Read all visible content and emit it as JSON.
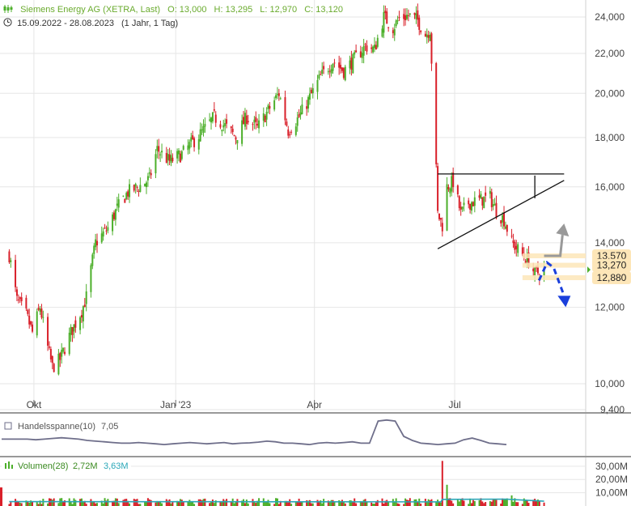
{
  "header": {
    "name": "Siemens Energy AG (XETRA, Last)",
    "open": "O: 13,000",
    "high": "H: 13,295",
    "low": "L: 12,970",
    "close": "C: 13,120",
    "range": "15.09.2022 - 28.08.2023",
    "interval": "(1 Jahr, 1 Tag)",
    "chart_icon": "candlestick-icon",
    "clock_icon": "clock-icon"
  },
  "colors": {
    "up": "#4caf2a",
    "down": "#d9202a",
    "grid": "#e6e6e6",
    "trend": "#111111",
    "label_bg": "#fde6b8",
    "arrow_up": "#999999",
    "arrow_down": "#1a3fdc",
    "volume_avg": "#2aa7b8",
    "indicator": "#6e6e8a"
  },
  "chart_data": [
    {
      "type": "candlestick",
      "title": "Siemens Energy AG (XETRA, Last)",
      "y_axis": {
        "scale": "log",
        "ticks": [
          "24,000",
          "22,000",
          "20,000",
          "18,000",
          "16,000",
          "14,000",
          "12,000",
          "10,000",
          "9,400"
        ],
        "tick_values": [
          24,
          22,
          20,
          18,
          16,
          14,
          12,
          10,
          9.4
        ],
        "ylim": [
          9.4,
          24.8
        ]
      },
      "x_axis": {
        "ticks": [
          "Okt",
          "Jan '23",
          "Apr",
          "Jul"
        ],
        "range": [
          "15.09.2022",
          "28.08.2023"
        ]
      },
      "close_path": [
        [
          "2022-09-15",
          13.6
        ],
        [
          "2022-09-20",
          12.2
        ],
        [
          "2022-09-26",
          11.8
        ],
        [
          "2022-09-30",
          11.3
        ],
        [
          "2022-10-05",
          12.0
        ],
        [
          "2022-10-10",
          10.9
        ],
        [
          "2022-10-13",
          10.4
        ],
        [
          "2022-10-18",
          10.6
        ],
        [
          "2022-10-25",
          11.3
        ],
        [
          "2022-11-01",
          11.9
        ],
        [
          "2022-11-04",
          12.3
        ],
        [
          "2022-11-10",
          14.0
        ],
        [
          "2022-11-18",
          14.5
        ],
        [
          "2022-11-24",
          15.2
        ],
        [
          "2022-12-01",
          15.8
        ],
        [
          "2022-12-08",
          16.0
        ],
        [
          "2022-12-15",
          16.3
        ],
        [
          "2022-12-20",
          17.5
        ],
        [
          "2022-12-28",
          17.0
        ],
        [
          "2023-01-05",
          17.3
        ],
        [
          "2023-01-12",
          17.8
        ],
        [
          "2023-01-19",
          18.3
        ],
        [
          "2023-01-26",
          18.9
        ],
        [
          "2023-02-02",
          18.5
        ],
        [
          "2023-02-09",
          18.0
        ],
        [
          "2023-02-16",
          18.9
        ],
        [
          "2023-02-23",
          18.4
        ],
        [
          "2023-03-02",
          19.2
        ],
        [
          "2023-03-09",
          20.0
        ],
        [
          "2023-03-15",
          18.3
        ],
        [
          "2023-03-22",
          18.9
        ],
        [
          "2023-03-29",
          19.8
        ],
        [
          "2023-04-05",
          20.8
        ],
        [
          "2023-04-13",
          21.6
        ],
        [
          "2023-04-20",
          21.1
        ],
        [
          "2023-04-27",
          21.7
        ],
        [
          "2023-05-04",
          22.4
        ],
        [
          "2023-05-10",
          22.2
        ],
        [
          "2023-05-16",
          24.0
        ],
        [
          "2023-05-22",
          23.4
        ],
        [
          "2023-05-26",
          23.9
        ],
        [
          "2023-06-01",
          24.1
        ],
        [
          "2023-06-07",
          23.8
        ],
        [
          "2023-06-12",
          23.0
        ],
        [
          "2023-06-15",
          23.3
        ],
        [
          "2023-06-20",
          15.0
        ],
        [
          "2023-06-23",
          14.6
        ],
        [
          "2023-06-26",
          16.0
        ],
        [
          "2023-06-30",
          16.2
        ],
        [
          "2023-07-05",
          15.0
        ],
        [
          "2023-07-10",
          15.4
        ],
        [
          "2023-07-17",
          15.5
        ],
        [
          "2023-07-24",
          15.6
        ],
        [
          "2023-07-28",
          15.1
        ],
        [
          "2023-08-02",
          14.8
        ],
        [
          "2023-08-07",
          14.0
        ],
        [
          "2023-08-14",
          13.6
        ],
        [
          "2023-08-18",
          13.4
        ],
        [
          "2023-08-22",
          13.0
        ],
        [
          "2023-08-28",
          13.12
        ]
      ],
      "levels": [
        "13,570",
        "13,270",
        "12,880"
      ],
      "level_values": [
        13.57,
        13.27,
        12.88
      ],
      "triangle": {
        "resistance": 16.5,
        "support_start": [
          "2023-06-20",
          13.8
        ],
        "support_end": [
          "2023-07-31",
          16.2
        ],
        "start_date": "2023-06-20",
        "end_date": "2023-08-22",
        "apex_date": "2023-09-10"
      },
      "scenarios": [
        {
          "direction": "up",
          "from": [
            "2023-08-28",
            13.57
          ],
          "to": [
            "2023-09-10",
            14.6
          ]
        },
        {
          "direction": "down",
          "from": [
            "2023-08-31",
            13.25
          ],
          "to": [
            "2023-09-10",
            12.1
          ]
        }
      ]
    },
    {
      "type": "line",
      "name": "Handelsspanne(10)",
      "value": "7,05",
      "summary_values": [
        0.42,
        0.42,
        0.42,
        0.42,
        0.4,
        0.42,
        0.44,
        0.46,
        0.44,
        0.42,
        0.38,
        0.36,
        0.34,
        0.32,
        0.3,
        0.3,
        0.32,
        0.3,
        0.28,
        0.26,
        0.28,
        0.3,
        0.32,
        0.3,
        0.28,
        0.3,
        0.32,
        0.28,
        0.3,
        0.31,
        0.33,
        0.36,
        0.34,
        0.3,
        0.3,
        0.28,
        0.26,
        0.3,
        0.32,
        0.3,
        0.32,
        0.34,
        0.3,
        0.3,
        0.95,
        0.98,
        0.95,
        0.5,
        0.38,
        0.3,
        0.28,
        0.26,
        0.28,
        0.3,
        0.4,
        0.45,
        0.38,
        0.3,
        0.28,
        0.26
      ]
    },
    {
      "type": "bar",
      "name": "Volumen(28)",
      "value": "2,72M",
      "average": "3,63M",
      "y_axis": {
        "ticks": [
          "30,00M",
          "20,00M",
          "10,00M"
        ],
        "tick_values": [
          30,
          20,
          10
        ]
      },
      "notable_volumes": [
        [
          "2023-06-23",
          34.0
        ],
        [
          "2023-06-26",
          16.0
        ],
        [
          "2023-08-07",
          8.0
        ]
      ],
      "average_line": [
        [
          "2022-09-15",
          3.3
        ],
        [
          "2023-06-22",
          3.1
        ],
        [
          "2023-06-23",
          5.0
        ],
        [
          "2023-08-03",
          5.2
        ],
        [
          "2023-08-28",
          3.6
        ]
      ]
    }
  ]
}
